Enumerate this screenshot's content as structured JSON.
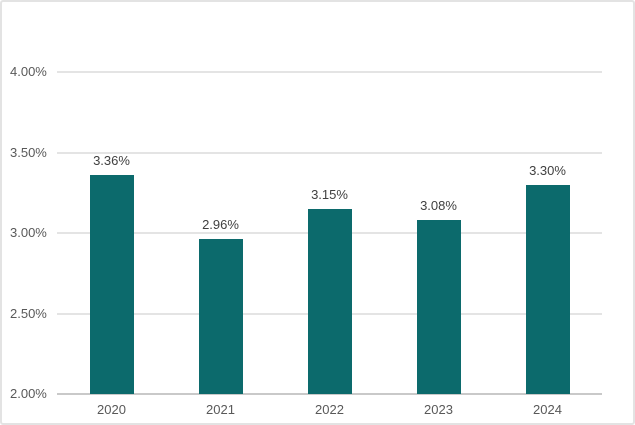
{
  "chart_data": {
    "type": "bar",
    "title": "",
    "xlabel": "",
    "ylabel": "",
    "categories": [
      "2020",
      "2021",
      "2022",
      "2023",
      "2024"
    ],
    "values": [
      3.36,
      2.96,
      3.15,
      3.08,
      3.3
    ],
    "data_labels": [
      "3.36%",
      "2.96%",
      "3.15%",
      "3.08%",
      "3.30%"
    ],
    "y_ticks": [
      {
        "value": 2.0,
        "label": "2.00%"
      },
      {
        "value": 2.5,
        "label": "2.50%"
      },
      {
        "value": 3.0,
        "label": "3.00%"
      },
      {
        "value": 3.5,
        "label": "3.50%"
      },
      {
        "value": 4.0,
        "label": "4.00%"
      }
    ],
    "ylim": [
      2.0,
      4.0
    ],
    "grid": true,
    "legend": false,
    "colors": {
      "bar": "#0c6a6c",
      "gridline": "#e4e4e4",
      "axis_line": "#c9c9c9",
      "axis_text": "#595959",
      "data_label_text": "#404040",
      "background": "#ffffff",
      "frame_border": "#e3e3e3"
    }
  }
}
